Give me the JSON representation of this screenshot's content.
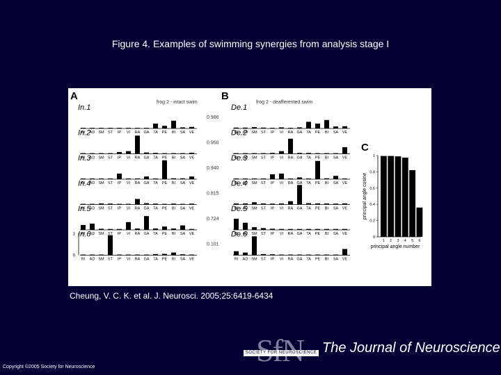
{
  "slide": {
    "title": "Figure 4. Examples of swimming synergies from analysis stage I",
    "citation": "Cheung, V. C. K. et al. J. Neurosci. 2005;25:6419-6434",
    "copyright": "Copyright ©2005 Society for Neuroscience",
    "journal": "The Journal of Neuroscience",
    "society_logo": {
      "letters": "SfN",
      "banner": "SOCIETY FOR NEUROSCIENCE"
    }
  },
  "figure": {
    "panel_a": {
      "letter": "A",
      "header": "frog 2 - intact swim",
      "ytick_top": "1",
      "ytick_bottom": "0"
    },
    "panel_b": {
      "letter": "B",
      "header": "frog 2 - deafferented swim"
    },
    "muscles": [
      "RI",
      "AD",
      "SM",
      "ST",
      "IP",
      "VI",
      "RA",
      "GA",
      "TA",
      "PE",
      "BI",
      "SA",
      "VE"
    ],
    "synergy_rows": [
      {
        "intact_label": "In.1",
        "deaff_label": "De.1",
        "similarity": "0.986",
        "intact": [
          0.03,
          0.03,
          0.03,
          0.03,
          0.03,
          0.03,
          0.03,
          0.03,
          0.22,
          0.12,
          0.35,
          0.05,
          0.07
        ],
        "deaff": [
          0.04,
          0.04,
          0.06,
          0.04,
          0.03,
          0.05,
          0.03,
          0.05,
          0.3,
          0.22,
          0.38,
          0.09,
          0.1
        ]
      },
      {
        "intact_label": "In.2",
        "deaff_label": "De.2",
        "similarity": "0.950",
        "intact": [
          0.03,
          0.03,
          0.03,
          0.03,
          0.08,
          0.12,
          0.82,
          0.06,
          0.04,
          0.03,
          0.03,
          0.03,
          0.05
        ],
        "deaff": [
          0.03,
          0.03,
          0.03,
          0.03,
          0.04,
          0.12,
          0.68,
          0.04,
          0.04,
          0.03,
          0.03,
          0.03,
          0.3
        ]
      },
      {
        "intact_label": "In.3",
        "deaff_label": "De.3",
        "similarity": "0.940",
        "intact": [
          0.03,
          0.03,
          0.03,
          0.03,
          0.25,
          0.03,
          0.03,
          0.12,
          0.03,
          0.85,
          0.04,
          0.04,
          0.12
        ],
        "deaff": [
          0.03,
          0.03,
          0.03,
          0.03,
          0.22,
          0.25,
          0.03,
          0.08,
          0.03,
          0.82,
          0.04,
          0.15,
          0.03
        ]
      },
      {
        "intact_label": "In.4",
        "deaff_label": "De.4",
        "similarity": "0.815",
        "intact": [
          0.03,
          0.03,
          0.05,
          0.04,
          0.03,
          0.03,
          0.25,
          0.06,
          0.04,
          0.03,
          0.04,
          0.03,
          0.04
        ],
        "deaff": [
          0.05,
          0.05,
          0.1,
          0.05,
          0.04,
          0.05,
          0.15,
          0.88,
          0.06,
          0.05,
          0.05,
          0.04,
          0.05
        ]
      },
      {
        "intact_label": "In.5",
        "deaff_label": "De.5",
        "similarity": "0.724",
        "intact": [
          0.22,
          0.28,
          0.05,
          0.04,
          0.04,
          0.35,
          0.06,
          0.62,
          0.06,
          0.15,
          0.06,
          0.2,
          0.04
        ],
        "deaff": [
          0.5,
          0.32,
          0.12,
          0.08,
          0.05,
          0.04,
          0.04,
          0.04,
          0.04,
          0.04,
          0.04,
          0.04,
          0.04
        ]
      },
      {
        "intact_label": "In.6",
        "deaff_label": "De.6",
        "similarity": "0.101",
        "intact": [
          0.03,
          0.03,
          0.03,
          0.9,
          0.03,
          0.03,
          0.03,
          0.03,
          0.05,
          0.06,
          0.12,
          0.04,
          0.03
        ],
        "deaff": [
          0.18,
          0.12,
          0.85,
          0.05,
          0.04,
          0.03,
          0.03,
          0.03,
          0.03,
          0.03,
          0.03,
          0.03,
          0.28
        ]
      }
    ]
  },
  "chart_data": {
    "type": "bar",
    "title": "C",
    "xlabel": "principal angle number",
    "ylabel": "principal angle cosine",
    "categories": [
      "1",
      "2",
      "3",
      "4",
      "5",
      "6"
    ],
    "values": [
      0.995,
      0.995,
      0.99,
      0.975,
      0.82,
      0.36
    ],
    "ylim": [
      0,
      1
    ],
    "yticks": [
      "0",
      "0.2",
      "0.4",
      "0.6",
      "0.8",
      "1"
    ],
    "grid": false
  }
}
